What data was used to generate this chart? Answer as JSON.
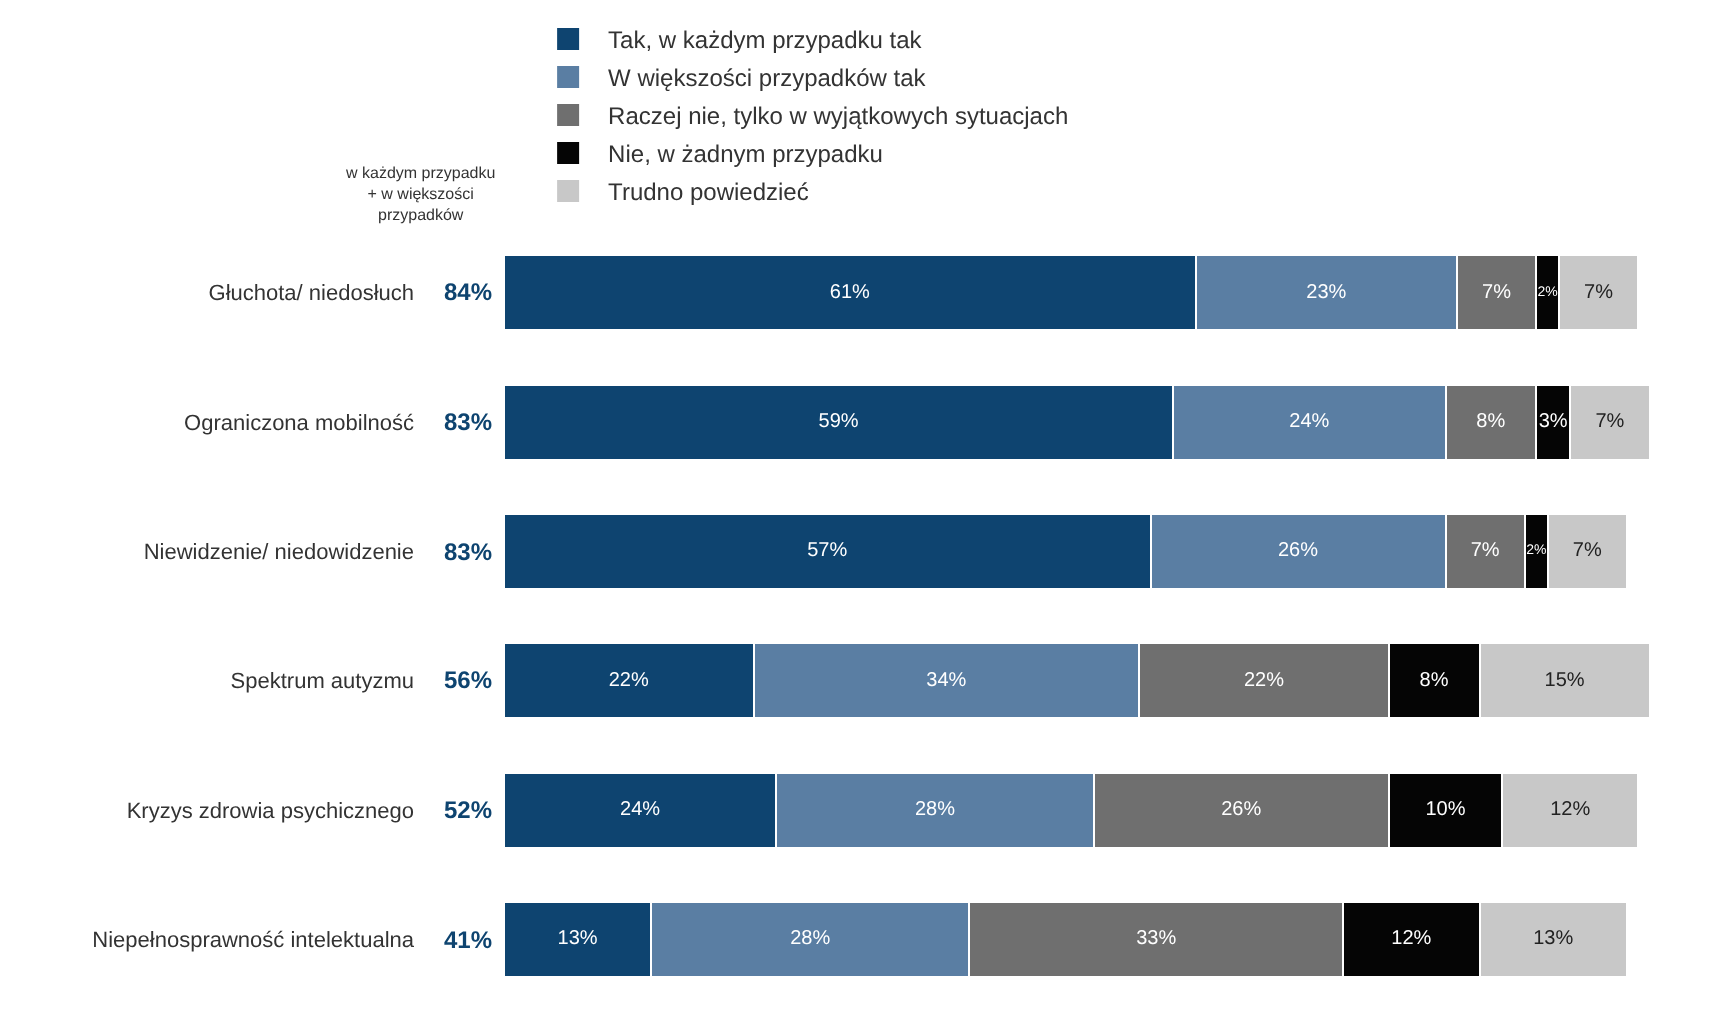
{
  "chart_data": {
    "type": "bar",
    "orientation": "horizontal",
    "stacked": true,
    "legend": "top",
    "tick_labels": "y",
    "categories": [
      "Głuchota/ niedosłuch",
      "Ograniczona mobilność",
      "Niewidzenie/ niedowidzenie",
      "Spektrum autyzmu",
      "Kryzys zdrowia psychicznego",
      "Niepełnosprawność intelektualna"
    ],
    "series": [
      {
        "name": "Tak, w każdym przypadku tak",
        "color": "#0e4470",
        "values": [
          61,
          59,
          57,
          22,
          24,
          13
        ],
        "value_labels": [
          "61%",
          "59%",
          "57%",
          "22%",
          "24%",
          "13%"
        ]
      },
      {
        "name": "W większości przypadków tak",
        "color": "#5a7ea3",
        "values": [
          23,
          24,
          26,
          34,
          28,
          28
        ],
        "value_labels": [
          "23%",
          "24%",
          "26%",
          "34%",
          "28%",
          "28%"
        ]
      },
      {
        "name": "Raczej nie, tylko w wyjątkowych sytuacjach",
        "color": "#6f6f6f",
        "values": [
          7,
          8,
          7,
          22,
          26,
          33
        ],
        "value_labels": [
          "7%",
          "8%",
          "7%",
          "22%",
          "26%",
          "33%"
        ]
      },
      {
        "name": "Nie, w żadnym przypadku",
        "color": "#050505",
        "values": [
          2,
          3,
          2,
          8,
          10,
          12
        ],
        "value_labels": [
          "2%",
          "3%",
          "2%",
          "8%",
          "10%",
          "12%"
        ]
      },
      {
        "name": "Trudno powiedzieć",
        "color": "#c8c8c8",
        "values": [
          7,
          7,
          7,
          15,
          12,
          13
        ],
        "value_labels": [
          "7%",
          "7%",
          "7%",
          "15%",
          "12%",
          "13%"
        ]
      }
    ],
    "annotations": [
      "w każdym przypadku\n+ w większości\nprzypadków",
      "84%",
      "83%",
      "83%",
      "56%",
      "52%",
      "41%"
    ]
  }
}
